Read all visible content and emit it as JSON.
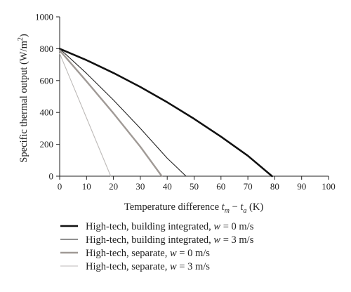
{
  "chart_data": {
    "type": "line",
    "title": "",
    "xlabel": "Temperature difference t_m − t_a (K)",
    "xlabel_parts": {
      "pre": "Temperature difference ",
      "tm": "t",
      "tm_sub": "m",
      "minus": " − ",
      "ta": "t",
      "ta_sub": "a",
      "post": " (K)"
    },
    "ylabel": "Specific thermal output (W/m²)",
    "ylabel_parts": {
      "main": "Specific thermal output (W/m",
      "sup": "2",
      "close": ")"
    },
    "xlim": [
      0,
      100
    ],
    "ylim": [
      0,
      1000
    ],
    "xticks": [
      0,
      10,
      20,
      30,
      40,
      50,
      60,
      70,
      80,
      90,
      100
    ],
    "yticks": [
      0,
      200,
      400,
      600,
      800,
      1000
    ],
    "grid": false,
    "legend_position": "below",
    "series": [
      {
        "name": "High-tech, building integrated, w = 0 m/s",
        "name_parts": {
          "pre": "High-tech, building integrated, ",
          "w": "w",
          "post": " = 0 m/s"
        },
        "color": "#111111",
        "x": [
          0,
          10,
          20,
          30,
          40,
          50,
          60,
          70,
          79
        ],
        "y": [
          800,
          728,
          648,
          560,
          464,
          360,
          248,
          128,
          0
        ]
      },
      {
        "name": "High-tech, building integrated, w = 3 m/s",
        "name_parts": {
          "pre": "High-tech, building integrated, ",
          "w": "w",
          "post": " = 3 m/s"
        },
        "color": "#222222",
        "x": [
          0,
          10,
          20,
          30,
          40,
          47
        ],
        "y": [
          800,
          645,
          478,
          300,
          113,
          0
        ]
      },
      {
        "name": "High-tech, separate, w = 0 m/s",
        "name_parts": {
          "pre": "High-tech, separate, ",
          "w": "w",
          "post": " = 0 m/s"
        },
        "color": "#a09a96",
        "x": [
          0,
          10,
          20,
          30,
          38
        ],
        "y": [
          790,
          595,
          395,
          185,
          0
        ]
      },
      {
        "name": "High-tech, separate, w = 3 m/s",
        "name_parts": {
          "pre": "High-tech, separate, ",
          "w": "w",
          "post": " = 3 m/s"
        },
        "color": "#bdbab8",
        "x": [
          0,
          5,
          10,
          15,
          19
        ],
        "y": [
          770,
          568,
          365,
          162,
          0
        ]
      }
    ]
  }
}
